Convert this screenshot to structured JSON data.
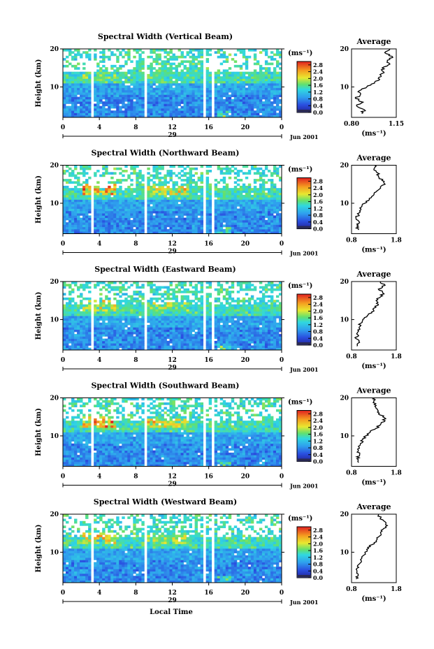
{
  "figure": {
    "xlabel": "Local Time",
    "date_label": "Jun 2001",
    "day_label": "29",
    "ylabel": "Height (km)",
    "unit_label": "(ms⁻¹)",
    "average_title": "Average"
  },
  "chart_data": [
    {
      "type": "heatmap",
      "title": "Spectral Width (Vertical Beam)",
      "xlabel": "Local Time",
      "ylabel": "Height (km)",
      "x_ticks": [
        "0",
        "4",
        "8",
        "12",
        "16",
        "20",
        "0"
      ],
      "x_range": [
        0,
        24
      ],
      "y_ticks": [
        "10",
        "20"
      ],
      "y_range": [
        2,
        20
      ],
      "colorbar_ticks": [
        "2.8",
        "2.4",
        "2.0",
        "1.6",
        "1.2",
        "0.8",
        "0.4",
        "0.0"
      ],
      "colorbar_range": [
        0,
        3.0
      ],
      "data_gaps_hours": [
        [
          3.1,
          3.4
        ],
        [
          8.8,
          9.1
        ],
        [
          15.4,
          15.7
        ],
        [
          16.3,
          16.6
        ]
      ],
      "profile": {
        "title": "Average",
        "x_ticks": [
          "0.80",
          "1.15"
        ],
        "x_range": [
          0.8,
          1.15
        ],
        "y_ticks": [
          "10",
          "20"
        ],
        "xlabel": "(ms⁻¹)",
        "heights_km": [
          3,
          4,
          5,
          6,
          7,
          8,
          9,
          10,
          11,
          12,
          13,
          14,
          15,
          16,
          17,
          18,
          19,
          20
        ],
        "values": [
          0.88,
          0.9,
          0.84,
          0.89,
          0.83,
          0.87,
          0.86,
          0.92,
          0.98,
          1.02,
          1.03,
          1.05,
          1.04,
          1.1,
          1.08,
          1.12,
          1.06,
          1.1
        ]
      }
    },
    {
      "type": "heatmap",
      "title": "Spectral Width (Northward Beam)",
      "xlabel": "Local Time",
      "ylabel": "Height (km)",
      "x_ticks": [
        "0",
        "4",
        "8",
        "12",
        "16",
        "20",
        "0"
      ],
      "x_range": [
        0,
        24
      ],
      "y_ticks": [
        "10",
        "20"
      ],
      "y_range": [
        2,
        20
      ],
      "colorbar_ticks": [
        "2.8",
        "2.4",
        "2.0",
        "1.6",
        "1.2",
        "0.8",
        "0.4",
        "0.0"
      ],
      "colorbar_range": [
        0,
        3.0
      ],
      "data_gaps_hours": [
        [
          3.1,
          3.4
        ],
        [
          8.8,
          9.1
        ],
        [
          15.4,
          15.7
        ],
        [
          16.3,
          16.6
        ]
      ],
      "profile": {
        "title": "Average",
        "x_ticks": [
          "0.8",
          "1.8"
        ],
        "x_range": [
          0.8,
          1.8
        ],
        "y_ticks": [
          "10",
          "20"
        ],
        "xlabel": "(ms⁻¹)",
        "heights_km": [
          3,
          4,
          5,
          6,
          7,
          8,
          9,
          10,
          11,
          12,
          13,
          14,
          15,
          16,
          17,
          18,
          19,
          20
        ],
        "values": [
          0.95,
          0.92,
          0.98,
          0.9,
          0.96,
          0.98,
          1.02,
          1.1,
          1.2,
          1.28,
          1.35,
          1.45,
          1.55,
          1.48,
          1.4,
          1.38,
          1.3,
          1.32
        ]
      }
    },
    {
      "type": "heatmap",
      "title": "Spectral Width (Eastward Beam)",
      "xlabel": "Local Time",
      "ylabel": "Height (km)",
      "x_ticks": [
        "0",
        "4",
        "8",
        "12",
        "16",
        "20",
        "0"
      ],
      "x_range": [
        0,
        24
      ],
      "y_ticks": [
        "10",
        "20"
      ],
      "y_range": [
        2,
        20
      ],
      "colorbar_ticks": [
        "2.8",
        "2.4",
        "2.0",
        "1.6",
        "1.2",
        "0.8",
        "0.4",
        "0.0"
      ],
      "colorbar_range": [
        0,
        3.0
      ],
      "data_gaps_hours": [
        [
          3.1,
          3.4
        ],
        [
          8.8,
          9.1
        ],
        [
          15.4,
          15.7
        ],
        [
          16.3,
          16.6
        ]
      ],
      "profile": {
        "title": "Average",
        "x_ticks": [
          "0.8",
          "1.8"
        ],
        "x_range": [
          0.8,
          1.8
        ],
        "y_ticks": [
          "10",
          "20"
        ],
        "xlabel": "(ms⁻¹)",
        "heights_km": [
          3,
          4,
          5,
          6,
          7,
          8,
          9,
          10,
          11,
          12,
          13,
          14,
          15,
          16,
          17,
          18,
          19,
          20
        ],
        "values": [
          0.92,
          0.98,
          0.9,
          0.94,
          0.96,
          0.97,
          1.0,
          1.05,
          1.15,
          1.25,
          1.3,
          1.4,
          1.35,
          1.45,
          1.5,
          1.4,
          1.55,
          1.45
        ]
      }
    },
    {
      "type": "heatmap",
      "title": "Spectral Width (Southward Beam)",
      "xlabel": "Local Time",
      "ylabel": "Height (km)",
      "x_ticks": [
        "0",
        "4",
        "8",
        "12",
        "16",
        "20",
        "0"
      ],
      "x_range": [
        0,
        24
      ],
      "y_ticks": [
        "10",
        "20"
      ],
      "y_range": [
        2,
        20
      ],
      "colorbar_ticks": [
        "2.8",
        "2.4",
        "2.0",
        "1.6",
        "1.2",
        "0.8",
        "0.4",
        "0.0"
      ],
      "colorbar_range": [
        0,
        3.0
      ],
      "data_gaps_hours": [
        [
          3.1,
          3.4
        ],
        [
          8.8,
          9.1
        ],
        [
          15.4,
          15.7
        ],
        [
          16.3,
          16.6
        ]
      ],
      "profile": {
        "title": "Average",
        "x_ticks": [
          "0.8",
          "1.8"
        ],
        "x_range": [
          0.8,
          1.8
        ],
        "y_ticks": [
          "10",
          "20"
        ],
        "xlabel": "(ms⁻¹)",
        "heights_km": [
          3,
          4,
          5,
          6,
          7,
          8,
          9,
          10,
          11,
          12,
          13,
          14,
          15,
          16,
          17,
          18,
          19,
          20
        ],
        "values": [
          0.96,
          0.92,
          0.98,
          0.95,
          0.97,
          1.0,
          1.05,
          1.12,
          1.22,
          1.35,
          1.45,
          1.55,
          1.5,
          1.42,
          1.38,
          1.35,
          1.3,
          1.32
        ]
      }
    },
    {
      "type": "heatmap",
      "title": "Spectral Width (Westward Beam)",
      "xlabel": "Local Time",
      "ylabel": "Height (km)",
      "x_ticks": [
        "0",
        "4",
        "8",
        "12",
        "16",
        "20",
        "0"
      ],
      "x_range": [
        0,
        24
      ],
      "y_ticks": [
        "10",
        "20"
      ],
      "y_range": [
        2,
        20
      ],
      "colorbar_ticks": [
        "2.8",
        "2.4",
        "2.0",
        "1.6",
        "1.2",
        "0.8",
        "0.4",
        "0.0"
      ],
      "colorbar_range": [
        0,
        3.0
      ],
      "data_gaps_hours": [
        [
          3.1,
          3.4
        ],
        [
          8.8,
          9.1
        ],
        [
          15.4,
          15.7
        ],
        [
          16.3,
          16.6
        ]
      ],
      "profile": {
        "title": "Average",
        "x_ticks": [
          "0.8",
          "1.8"
        ],
        "x_range": [
          0.8,
          1.8
        ],
        "y_ticks": [
          "10",
          "20"
        ],
        "xlabel": "(ms⁻¹)",
        "heights_km": [
          3,
          4,
          5,
          6,
          7,
          8,
          9,
          10,
          11,
          12,
          13,
          14,
          15,
          16,
          17,
          18,
          19,
          20
        ],
        "values": [
          0.9,
          0.95,
          0.92,
          0.96,
          0.98,
          1.0,
          1.05,
          1.1,
          1.18,
          1.26,
          1.35,
          1.4,
          1.45,
          1.5,
          1.6,
          1.55,
          1.45,
          1.4
        ]
      }
    }
  ]
}
